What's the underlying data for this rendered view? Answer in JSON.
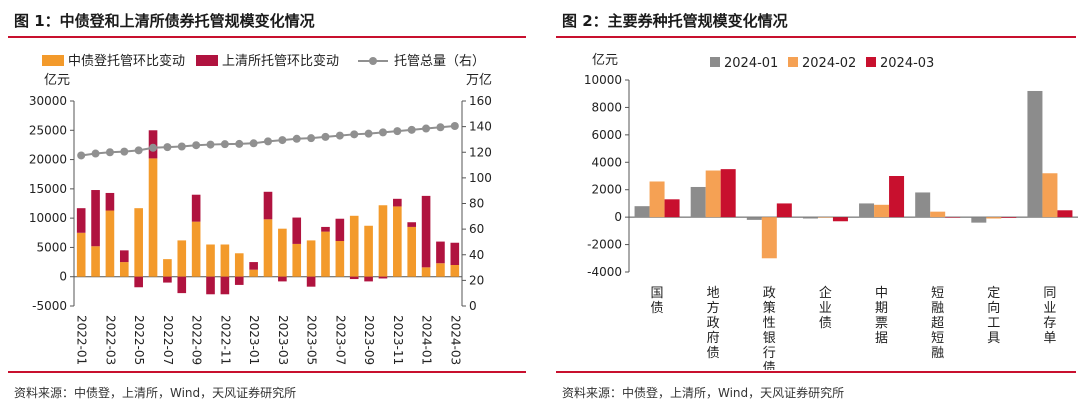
{
  "left": {
    "title": "图 1：中债登和上清所债券托管规模变化情况",
    "source": "资料来源：中债登，上清所，Wind，天风证券研究所"
  },
  "right": {
    "title": "图 2：主要券种托管规模变化情况",
    "source": "资料来源：中债登，上清所，Wind，天风证券研究所"
  },
  "colors": {
    "orange": "#f39a2b",
    "crimson": "#b0133f",
    "gray": "#909090",
    "gray_bar": "#8c8c8c",
    "orange_light": "#f5a154",
    "red": "#c8102e",
    "accent": "#c8102e"
  },
  "chart_data": [
    {
      "type": "bar",
      "stacked": true,
      "y_unit_left": "亿元",
      "y_unit_right": "万亿",
      "ylim_left": [
        -5000,
        30000
      ],
      "yticks_left": [
        -5000,
        0,
        5000,
        10000,
        15000,
        20000,
        25000,
        30000
      ],
      "ylim_right": [
        0,
        160
      ],
      "yticks_right": [
        0,
        20,
        40,
        60,
        80,
        100,
        120,
        140,
        160
      ],
      "x_tick_labels": [
        "2022-01",
        "2022-03",
        "2022-05",
        "2022-07",
        "2022-09",
        "2022-11",
        "2023-01",
        "2023-03",
        "2023-05",
        "2023-07",
        "2023-09",
        "2023-11",
        "2024-01",
        "2024-03"
      ],
      "categories": [
        "2022-01",
        "2022-02",
        "2022-03",
        "2022-04",
        "2022-05",
        "2022-06",
        "2022-07",
        "2022-08",
        "2022-09",
        "2022-10",
        "2022-11",
        "2022-12",
        "2023-01",
        "2023-02",
        "2023-03",
        "2023-04",
        "2023-05",
        "2023-06",
        "2023-07",
        "2023-08",
        "2023-09",
        "2023-10",
        "2023-11",
        "2023-12",
        "2024-01",
        "2024-02",
        "2024-03"
      ],
      "legend_position": "top",
      "series": [
        {
          "name": "中债登托管环比变动",
          "axis": "left",
          "kind": "bar",
          "values": [
            7500,
            5200,
            11300,
            2500,
            11700,
            20200,
            3000,
            6200,
            9400,
            5500,
            5500,
            4000,
            1200,
            9800,
            8200,
            5600,
            6200,
            7700,
            6100,
            10400,
            8700,
            12200,
            12000,
            8500,
            1600,
            2300,
            2000
          ]
        },
        {
          "name": "上清所托管环比变动",
          "axis": "left",
          "kind": "bar",
          "values": [
            4200,
            9600,
            3000,
            2000,
            -1800,
            4800,
            -1000,
            -2800,
            4600,
            -3000,
            -3000,
            -1400,
            1300,
            4700,
            -800,
            4500,
            -1700,
            800,
            3800,
            -400,
            -800,
            -300,
            1300,
            800,
            12200,
            3700,
            3800
          ]
        },
        {
          "name": "托管总量（右）",
          "axis": "right",
          "kind": "line",
          "values": [
            117.5,
            119.0,
            120.0,
            120.5,
            121.5,
            123.5,
            124.0,
            124.5,
            125.5,
            126.0,
            126.3,
            126.5,
            127.0,
            128.5,
            129.5,
            130.5,
            131.0,
            132.0,
            133.0,
            134.0,
            134.5,
            135.5,
            136.5,
            137.5,
            138.5,
            139.5,
            140.5
          ]
        }
      ]
    },
    {
      "type": "bar",
      "y_unit": "亿元",
      "ylim": [
        -4000,
        10000
      ],
      "yticks": [
        -4000,
        -2000,
        0,
        2000,
        4000,
        6000,
        8000,
        10000
      ],
      "categories": [
        "国债",
        "地方政府债",
        "政策性银行债",
        "企业债",
        "中期票据",
        "短融超短融",
        "定向工具",
        "同业存单"
      ],
      "legend_position": "top",
      "series": [
        {
          "name": "2024-01",
          "values": [
            800,
            2200,
            -200,
            -100,
            1000,
            1800,
            -400,
            9200
          ]
        },
        {
          "name": "2024-02",
          "values": [
            2600,
            3400,
            -3000,
            0,
            900,
            400,
            -100,
            3200
          ]
        },
        {
          "name": "2024-03",
          "values": [
            1300,
            3500,
            1000,
            -300,
            3000,
            0,
            -50,
            500
          ]
        }
      ]
    }
  ]
}
